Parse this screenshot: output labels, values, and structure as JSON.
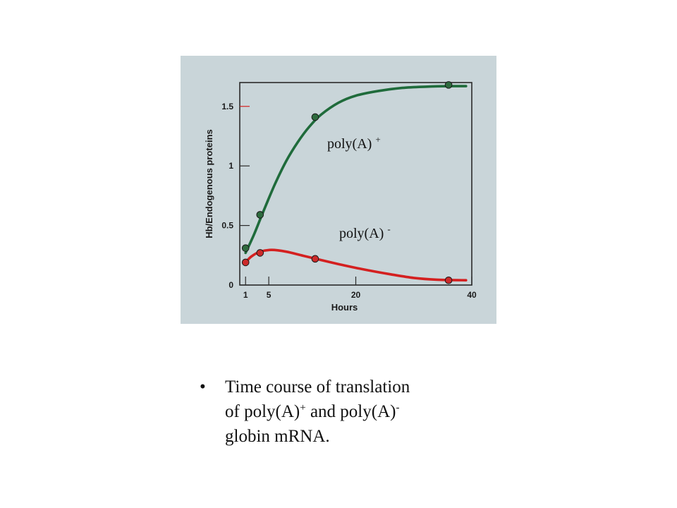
{
  "colors": {
    "panel_bg": "#c9d5d9",
    "axis": "#2a2a2a",
    "polyA_plus_line": "#1f6b3b",
    "polyA_plus_marker": "#2e6b3e",
    "polyA_minus_line": "#d42020",
    "polyA_minus_marker": "#cc2a2a"
  },
  "chart_data": {
    "type": "line",
    "title": "",
    "xlabel": "Hours",
    "ylabel": "Hb/Endogenous proteins",
    "xlim": [
      0,
      40
    ],
    "ylim": [
      0,
      1.7
    ],
    "x_ticks": [
      1,
      5,
      20,
      40
    ],
    "y_ticks": [
      0,
      0.5,
      1,
      1.5
    ],
    "x_tick_labels": [
      "1",
      "5",
      "20",
      "40"
    ],
    "y_tick_labels": [
      "0",
      "0.5",
      "1",
      "1.5"
    ],
    "grid": false,
    "series": [
      {
        "name": "poly(A)",
        "superscript": "+",
        "points": [
          {
            "x": 1,
            "y": 0.31
          },
          {
            "x": 3.5,
            "y": 0.59
          },
          {
            "x": 13,
            "y": 1.41
          },
          {
            "x": 36,
            "y": 1.68
          }
        ],
        "curve": [
          {
            "x": 1,
            "y": 0.27
          },
          {
            "x": 2.5,
            "y": 0.43
          },
          {
            "x": 4,
            "y": 0.61
          },
          {
            "x": 6,
            "y": 0.84
          },
          {
            "x": 8,
            "y": 1.04
          },
          {
            "x": 10,
            "y": 1.2
          },
          {
            "x": 12,
            "y": 1.33
          },
          {
            "x": 14,
            "y": 1.43
          },
          {
            "x": 17,
            "y": 1.53
          },
          {
            "x": 20,
            "y": 1.59
          },
          {
            "x": 24,
            "y": 1.63
          },
          {
            "x": 28,
            "y": 1.655
          },
          {
            "x": 32,
            "y": 1.665
          },
          {
            "x": 36,
            "y": 1.67
          },
          {
            "x": 39,
            "y": 1.67
          }
        ]
      },
      {
        "name": "poly(A)",
        "superscript": "-",
        "points": [
          {
            "x": 1,
            "y": 0.19
          },
          {
            "x": 3.5,
            "y": 0.27
          },
          {
            "x": 13,
            "y": 0.22
          },
          {
            "x": 36,
            "y": 0.04
          }
        ],
        "curve": [
          {
            "x": 1,
            "y": 0.19
          },
          {
            "x": 2,
            "y": 0.24
          },
          {
            "x": 3.5,
            "y": 0.28
          },
          {
            "x": 5.5,
            "y": 0.295
          },
          {
            "x": 8,
            "y": 0.28
          },
          {
            "x": 11,
            "y": 0.245
          },
          {
            "x": 14,
            "y": 0.21
          },
          {
            "x": 18,
            "y": 0.165
          },
          {
            "x": 22,
            "y": 0.125
          },
          {
            "x": 26,
            "y": 0.09
          },
          {
            "x": 30,
            "y": 0.06
          },
          {
            "x": 34,
            "y": 0.045
          },
          {
            "x": 39,
            "y": 0.04
          }
        ]
      }
    ]
  },
  "labels": {
    "polyA_plus": {
      "base": "poly(A)",
      "sup": "+"
    },
    "polyA_minus": {
      "base": "poly(A)",
      "sup": "-"
    }
  },
  "caption": {
    "bullet": "•",
    "line1": "Time course of translation",
    "line2_a": "of poly(A)",
    "line2_sup1": "+",
    "line2_b": " and poly(A)",
    "line2_sup2": "-",
    "line3": "globin mRNA."
  }
}
